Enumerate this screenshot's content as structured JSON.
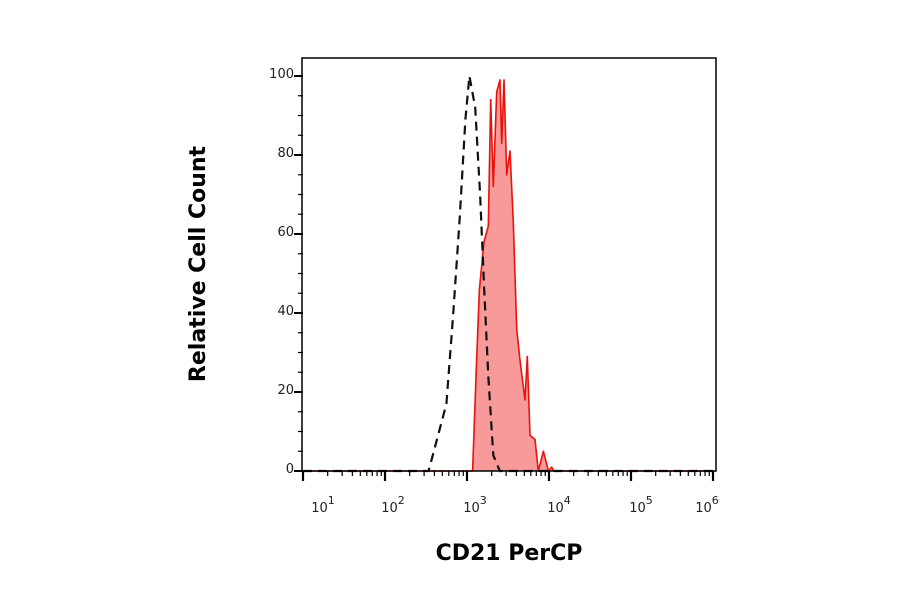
{
  "chart_data": {
    "type": "area",
    "title": "",
    "xlabel": "CD21 PerCP",
    "ylabel": "Relative Cell Count",
    "x_scale": "log",
    "xlim": [
      10,
      1000000
    ],
    "ylim": [
      0,
      100
    ],
    "grid": false,
    "x_ticks": [
      {
        "base": "10",
        "exp": "1",
        "value": 10
      },
      {
        "base": "10",
        "exp": "2",
        "value": 100
      },
      {
        "base": "10",
        "exp": "3",
        "value": 1000
      },
      {
        "base": "10",
        "exp": "4",
        "value": 10000
      },
      {
        "base": "10",
        "exp": "5",
        "value": 100000
      },
      {
        "base": "10",
        "exp": "6",
        "value": 1000000
      }
    ],
    "y_ticks": [
      "0",
      "20",
      "40",
      "60",
      "80",
      "100"
    ],
    "series": [
      {
        "style": "dashed-line",
        "color": "#111111",
        "x": [
          10,
          340,
          560,
          675,
          815,
          955,
          1070,
          1260,
          1445,
          1620,
          1820,
          2090,
          2510,
          1000000
        ],
        "y": [
          0,
          0,
          17,
          39,
          64,
          89,
          100,
          92,
          70,
          46,
          24,
          4,
          0,
          0
        ]
      },
      {
        "style": "filled",
        "color": "#e8120c",
        "fill": "#f99a9a",
        "x": [
          10,
          1170,
          1310,
          1415,
          1610,
          1820,
          1945,
          2095,
          2300,
          2525,
          2650,
          2825,
          3050,
          3345,
          3670,
          4035,
          4430,
          5095,
          5440,
          5865,
          6745,
          7415,
          8535,
          9820,
          10800,
          11500,
          1000000
        ],
        "y": [
          0,
          0,
          28,
          46,
          58,
          62,
          94,
          72,
          96,
          99,
          83,
          99,
          75,
          81,
          63,
          36,
          28,
          18,
          29,
          9,
          8,
          0,
          5,
          0,
          1,
          0,
          0
        ]
      }
    ]
  }
}
